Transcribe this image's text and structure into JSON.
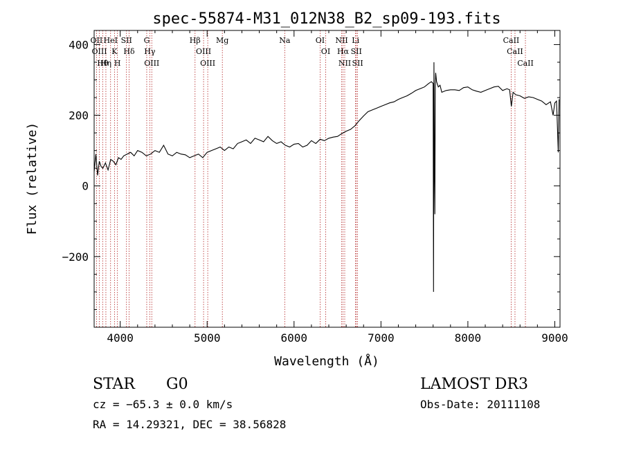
{
  "chart_data": {
    "type": "line",
    "title": "spec-55874-M31_012N38_B2_sp09-193.fits",
    "xlabel": "Wavelength (Å)",
    "ylabel": "Flux (relative)",
    "xlim": [
      3700,
      9060
    ],
    "ylim": [
      -400,
      440
    ],
    "xticks": [
      4000,
      5000,
      6000,
      7000,
      8000,
      9000
    ],
    "yticks": [
      -200,
      0,
      200,
      400
    ],
    "colors": {
      "line": "#000000",
      "marker": "#b22222",
      "axes": "#000000"
    },
    "series": [
      {
        "name": "flux",
        "x": [
          3700,
          3720,
          3740,
          3760,
          3780,
          3800,
          3830,
          3860,
          3890,
          3920,
          3950,
          3980,
          4010,
          4040,
          4080,
          4120,
          4160,
          4200,
          4250,
          4300,
          4350,
          4400,
          4450,
          4500,
          4550,
          4600,
          4650,
          4700,
          4750,
          4800,
          4850,
          4900,
          4950,
          5000,
          5050,
          5100,
          5150,
          5200,
          5250,
          5300,
          5350,
          5400,
          5450,
          5500,
          5550,
          5600,
          5650,
          5700,
          5750,
          5800,
          5850,
          5900,
          5950,
          6000,
          6050,
          6100,
          6150,
          6200,
          6250,
          6300,
          6350,
          6400,
          6450,
          6500,
          6550,
          6600,
          6650,
          6700,
          6750,
          6800,
          6850,
          6900,
          6950,
          7000,
          7050,
          7100,
          7150,
          7200,
          7250,
          7300,
          7350,
          7400,
          7450,
          7500,
          7550,
          7580,
          7600,
          7605,
          7610,
          7615,
          7620,
          7625,
          7630,
          7640,
          7660,
          7680,
          7700,
          7750,
          7800,
          7850,
          7900,
          7950,
          8000,
          8050,
          8100,
          8150,
          8200,
          8250,
          8300,
          8350,
          8400,
          8450,
          8480,
          8500,
          8520,
          8550,
          8600,
          8650,
          8700,
          8750,
          8800,
          8850,
          8900,
          8950,
          8980,
          9000,
          9020,
          9040,
          9050
        ],
        "y": [
          40,
          90,
          30,
          70,
          55,
          50,
          65,
          45,
          75,
          70,
          60,
          80,
          75,
          85,
          90,
          95,
          85,
          100,
          95,
          85,
          90,
          100,
          95,
          115,
          90,
          85,
          95,
          90,
          88,
          80,
          85,
          90,
          80,
          95,
          100,
          105,
          110,
          100,
          110,
          105,
          120,
          125,
          130,
          120,
          135,
          130,
          125,
          140,
          128,
          120,
          125,
          115,
          110,
          118,
          120,
          110,
          115,
          128,
          120,
          132,
          128,
          135,
          138,
          140,
          148,
          155,
          160,
          170,
          185,
          198,
          210,
          215,
          220,
          225,
          230,
          235,
          238,
          245,
          250,
          255,
          262,
          270,
          275,
          280,
          290,
          295,
          290,
          -300,
          350,
          40,
          -80,
          280,
          320,
          295,
          280,
          285,
          265,
          270,
          272,
          272,
          270,
          278,
          280,
          272,
          268,
          265,
          270,
          275,
          280,
          282,
          270,
          275,
          272,
          225,
          265,
          258,
          255,
          248,
          252,
          250,
          245,
          240,
          230,
          238,
          200,
          235,
          240,
          95,
          245
        ]
      }
    ],
    "lines": [
      {
        "label": "Hθ",
        "wavelength": 3798
      },
      {
        "label": "OII",
        "wavelength": 3727
      },
      {
        "label": "OIII",
        "wavelength": 3760
      },
      {
        "label": "HeI",
        "wavelength": 3889
      },
      {
        "label": "K",
        "wavelength": 3934
      },
      {
        "label": "H",
        "wavelength": 3968
      },
      {
        "label": "Hη",
        "wavelength": 3835
      },
      {
        "label": "SII",
        "wavelength": 4072
      },
      {
        "label": "Hδ",
        "wavelength": 4102
      },
      {
        "label": "OIII",
        "wavelength": 4363
      },
      {
        "label": "Hγ",
        "wavelength": 4340
      },
      {
        "label": "G",
        "wavelength": 4305
      },
      {
        "label": "OIII",
        "wavelength": 4959
      },
      {
        "label": "OIII",
        "wavelength": 5007
      },
      {
        "label": "Hβ",
        "wavelength": 4861
      },
      {
        "label": "Mg",
        "wavelength": 5175
      },
      {
        "label": "Na",
        "wavelength": 5893
      },
      {
        "label": "OI",
        "wavelength": 6300
      },
      {
        "label": "OI",
        "wavelength": 6364
      },
      {
        "label": "Hα",
        "wavelength": 6563
      },
      {
        "label": "NII",
        "wavelength": 6548
      },
      {
        "label": "NII",
        "wavelength": 6583
      },
      {
        "label": "SII",
        "wavelength": 6716
      },
      {
        "label": "SII",
        "wavelength": 6731
      },
      {
        "label": "Li",
        "wavelength": 6708
      },
      {
        "label": "CaII",
        "wavelength": 8542
      },
      {
        "label": "CaII",
        "wavelength": 8498
      },
      {
        "label": "CaII",
        "wavelength": 8662
      }
    ]
  },
  "info": {
    "object_class": "STAR",
    "subclass": "G0",
    "survey": "LAMOST DR3",
    "cz": "cz = −65.3 ± 0.0 km/s",
    "obs_date": "Obs-Date: 20111108",
    "coords": "RA =  14.29321, DEC =  38.56828"
  }
}
